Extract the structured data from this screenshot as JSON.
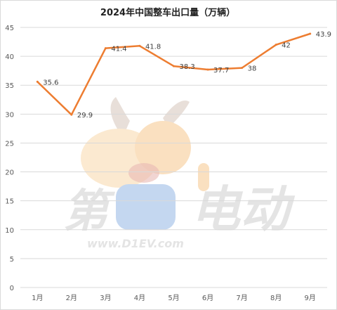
{
  "chart_data": {
    "type": "line",
    "title": "2024年中国整车出口量（万辆）",
    "categories": [
      "1月",
      "2月",
      "3月",
      "4月",
      "5月",
      "6月",
      "7月",
      "8月",
      "9月"
    ],
    "series": [
      {
        "values": [
          35.6,
          29.9,
          41.4,
          41.8,
          38.3,
          37.7,
          38,
          42,
          43.9
        ]
      }
    ],
    "data_labels": [
      "35.6",
      "29.9",
      "41.4",
      "41.8",
      "38.3",
      "37.7",
      "38",
      "42",
      "43.9"
    ],
    "ylim": [
      0,
      45
    ],
    "yticks": [
      0,
      5,
      10,
      15,
      20,
      25,
      30,
      35,
      40,
      45
    ],
    "grid": true,
    "legend": "none",
    "line_color": "#ED7D31",
    "grid_color": "#D9D9D9"
  },
  "watermark": {
    "text_left": "第",
    "text_right": "电动",
    "url": "www.D1EV.com"
  }
}
